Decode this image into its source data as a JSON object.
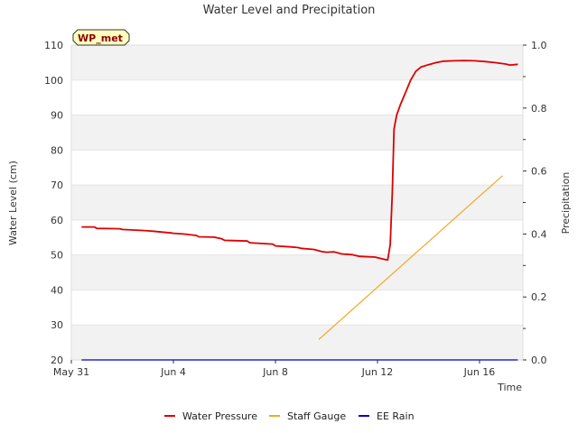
{
  "chart_data": {
    "type": "line",
    "title": "Water Level and Precipitation",
    "xlabel": "Time",
    "ylabel": "Water Level (cm)",
    "y2label": "Precipitation",
    "badge": "WP_met",
    "x_ticks": [
      {
        "label": "May 31",
        "day": 0
      },
      {
        "label": "Jun 4",
        "day": 4
      },
      {
        "label": "Jun 8",
        "day": 8
      },
      {
        "label": "Jun 12",
        "day": 12
      },
      {
        "label": "Jun 16",
        "day": 16
      }
    ],
    "xlim_days": [
      0,
      17.7
    ],
    "ylim": [
      20,
      110
    ],
    "y_ticks": [
      20,
      30,
      40,
      50,
      60,
      70,
      80,
      90,
      100,
      110
    ],
    "y2lim": [
      0,
      1.0
    ],
    "y2_ticks": [
      "0.0",
      "0.2",
      "0.4",
      "0.6",
      "0.8",
      "1.0"
    ],
    "grid": "horizontal bands",
    "legend_position": "bottom",
    "series": [
      {
        "name": "Water Pressure",
        "color": "#dd0000",
        "axis": "left",
        "x": [
          0.4,
          0.9,
          1.0,
          1.9,
          2.0,
          2.8,
          3.0,
          3.2,
          3.9,
          4.0,
          4.4,
          4.9,
          5.0,
          5.6,
          5.9,
          6.0,
          6.9,
          7.0,
          7.9,
          8.0,
          8.6,
          8.9,
          9.0,
          9.5,
          9.8,
          10.0,
          10.3,
          10.6,
          11.0,
          11.3,
          11.9,
          12.3,
          12.4,
          12.5,
          12.58,
          12.65,
          12.75,
          12.9,
          13.1,
          13.3,
          13.5,
          13.7,
          14.0,
          14.3,
          14.6,
          15.0,
          15.4,
          15.8,
          16.2,
          16.6,
          17.0,
          17.2,
          17.5
        ],
        "y": [
          58.0,
          58.0,
          57.6,
          57.5,
          57.3,
          57.0,
          56.9,
          56.8,
          56.3,
          56.2,
          56.0,
          55.6,
          55.2,
          55.1,
          54.6,
          54.2,
          54.0,
          53.5,
          53.1,
          52.6,
          52.3,
          52.1,
          51.9,
          51.6,
          51.0,
          50.8,
          50.9,
          50.3,
          50.1,
          49.6,
          49.4,
          48.7,
          48.6,
          53.0,
          68.0,
          86.0,
          90.0,
          93.0,
          96.5,
          100.0,
          102.5,
          103.7,
          104.4,
          105.0,
          105.4,
          105.5,
          105.6,
          105.5,
          105.3,
          105.0,
          104.6,
          104.3,
          104.5
        ]
      },
      {
        "name": "Staff Gauge",
        "color": "#f5a623",
        "axis": "right",
        "x": [
          9.7,
          16.9
        ],
        "y": [
          0.065,
          0.585
        ]
      },
      {
        "name": "EE Rain",
        "color": "#0000cc",
        "axis": "right",
        "x": [
          0.4,
          17.5
        ],
        "y": [
          0,
          0
        ]
      }
    ]
  }
}
